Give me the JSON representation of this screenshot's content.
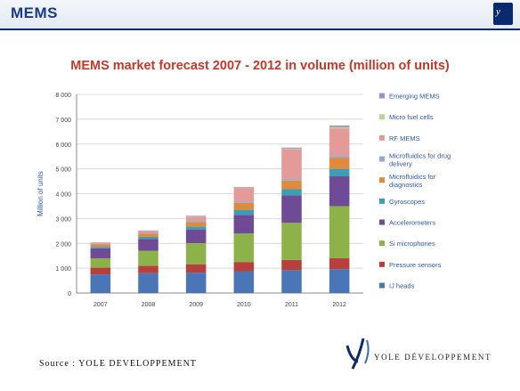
{
  "header": {
    "title": "MEMS",
    "corner_logo_text": "y"
  },
  "chart_data": {
    "type": "bar",
    "stacked": true,
    "title": "MEMS market forecast 2007 - 2012 in volume (million of units)",
    "xlabel": "",
    "ylabel": "Million of units",
    "ylim": [
      0,
      8000
    ],
    "yticks": [
      "0",
      "1 000",
      "2 000",
      "3 000",
      "4 000",
      "5 000",
      "6 000",
      "7 000",
      "8 000"
    ],
    "categories": [
      "2007",
      "2008",
      "2009",
      "2010",
      "2011",
      "2012"
    ],
    "legend_position": "right",
    "grid": true,
    "series": [
      {
        "name": "IJ heads",
        "color": "#4a76b8",
        "values": [
          750,
          800,
          820,
          880,
          920,
          960
        ]
      },
      {
        "name": "Pressure sensors",
        "color": "#b8403c",
        "values": [
          270,
          300,
          340,
          370,
          410,
          440
        ]
      },
      {
        "name": "Si microphones",
        "color": "#8db24a",
        "values": [
          380,
          600,
          850,
          1150,
          1500,
          2100
        ]
      },
      {
        "name": "Accelerometers",
        "color": "#6e4b94",
        "values": [
          400,
          480,
          550,
          750,
          1100,
          1200
        ]
      },
      {
        "name": "Gyroscopes",
        "color": "#3c9db4",
        "values": [
          60,
          80,
          120,
          200,
          250,
          300
        ]
      },
      {
        "name": "Microfluidics  for diagnostics",
        "color": "#e08a3c",
        "values": [
          100,
          130,
          170,
          280,
          350,
          450
        ]
      },
      {
        "name": "Microfluidics  for drug delivery",
        "color": "#8eaad4",
        "values": [
          20,
          30,
          40,
          50,
          60,
          70
        ]
      },
      {
        "name": "RF MEMS",
        "color": "#e39a98",
        "values": [
          50,
          80,
          180,
          550,
          1200,
          1100
        ]
      },
      {
        "name": "Micro fuel  cells",
        "color": "#b7d492",
        "values": [
          0,
          0,
          10,
          20,
          30,
          60
        ]
      },
      {
        "name": "Emerging MEMS",
        "color": "#a092bf",
        "values": [
          10,
          20,
          30,
          20,
          40,
          70
        ]
      }
    ]
  },
  "footer": {
    "source_label": "Source :",
    "source_name": "YOLE DEVELOPPEMENT",
    "brand_name": "YOLE DÉVELOPPEMENT"
  }
}
